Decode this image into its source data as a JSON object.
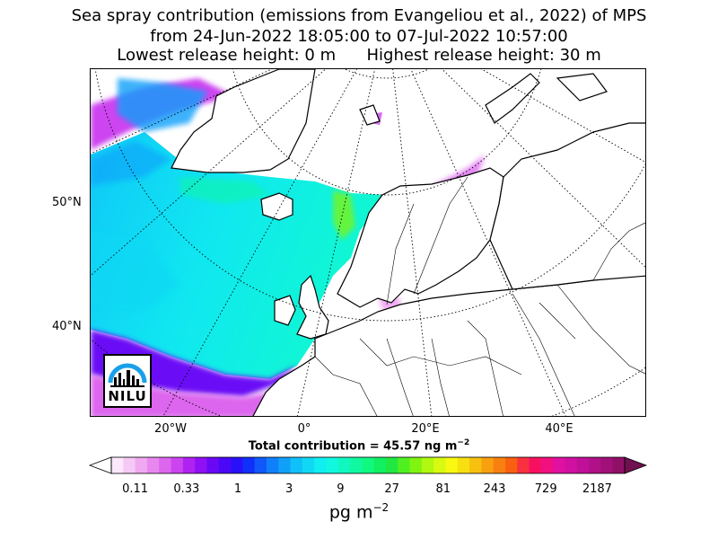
{
  "title": {
    "line1": "Sea spray contribution (emissions from Evangeliou et al., 2022) of MPS",
    "line2": "from 24-Jun-2022 18:05:00 to 07-Jul-2022 10:57:00",
    "line3_left": "Lowest release height: 0 m",
    "line3_right": "Highest release height: 30 m"
  },
  "map": {
    "lat_labels": [
      "50°N",
      "40°N"
    ],
    "lon_labels": [
      "20°W",
      "0°",
      "20°E",
      "40°E"
    ],
    "logo_text": "NILU",
    "total_prefix": "Total contribution = 45.57 ng m",
    "total_exp": "−2"
  },
  "colorbar": {
    "ticks": [
      "0.11",
      "0.33",
      "1",
      "3",
      "9",
      "27",
      "81",
      "243",
      "729",
      "2187"
    ],
    "unit": "pg m",
    "unit_exp": "−2",
    "colors": [
      "#fce8fc",
      "#f5c9f5",
      "#f0a8f0",
      "#e888ee",
      "#dd66ee",
      "#cc44f0",
      "#b022f2",
      "#9010f4",
      "#6a08f6",
      "#4a08f6",
      "#2a10f8",
      "#1030fa",
      "#1058fa",
      "#1080fa",
      "#10a0fa",
      "#10c0f8",
      "#10d8f4",
      "#10eef0",
      "#10f8e0",
      "#10f8c0",
      "#10f8a0",
      "#10f880",
      "#10f060",
      "#20e840",
      "#50f020",
      "#80f410",
      "#b0f810",
      "#d8fa10",
      "#f8f810",
      "#f8e010",
      "#f8c010",
      "#f8a010",
      "#f88010",
      "#f86010",
      "#f83040",
      "#f81060",
      "#f01080",
      "#e010a0",
      "#d010a0",
      "#c01098",
      "#b01088",
      "#a01078",
      "#901068"
    ],
    "under_color": "#ffffff",
    "over_color": "#701050"
  }
}
